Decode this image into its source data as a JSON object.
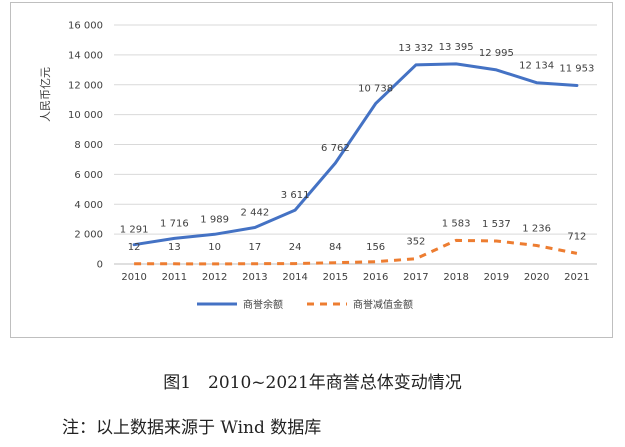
{
  "chart_data": {
    "type": "line",
    "categories": [
      "2010",
      "2011",
      "2012",
      "2013",
      "2014",
      "2015",
      "2016",
      "2017",
      "2018",
      "2019",
      "2020",
      "2021"
    ],
    "series": [
      {
        "name": "商誉余额",
        "color": "#4472c4",
        "style": "solid",
        "values": [
          1291,
          1716,
          1989,
          2442,
          3611,
          6762,
          10738,
          13332,
          13395,
          12995,
          12134,
          11953
        ],
        "labels": [
          "1 291",
          "1 716",
          "1 989",
          "2 442",
          "3 611",
          "6 762",
          "10 738",
          "13 332",
          "13 395",
          "12 995",
          "12 134",
          "11 953"
        ]
      },
      {
        "name": "商誉减值金额",
        "color": "#ed7d31",
        "style": "dashed",
        "values": [
          12,
          13,
          10,
          17,
          24,
          84,
          156,
          352,
          1583,
          1537,
          1236,
          712
        ],
        "labels": [
          "12",
          "13",
          "10",
          "17",
          "24",
          "84",
          "156",
          "352",
          "1 583",
          "1 537",
          "1 236",
          "712"
        ]
      }
    ],
    "ylabel": "人民币亿元",
    "ylim": [
      0,
      16000
    ],
    "yticks": [
      0,
      2000,
      4000,
      6000,
      8000,
      10000,
      12000,
      14000,
      16000
    ],
    "ytick_labels": [
      "0",
      "2 000",
      "4 000",
      "6 000",
      "8 000",
      "10 000",
      "12 000",
      "14 000",
      "16 000"
    ],
    "grid": true,
    "legend_position": "bottom"
  },
  "caption": "图1　2010~2021年商誉总体变动情况",
  "note": "注：以上数据来源于 Wind 数据库"
}
